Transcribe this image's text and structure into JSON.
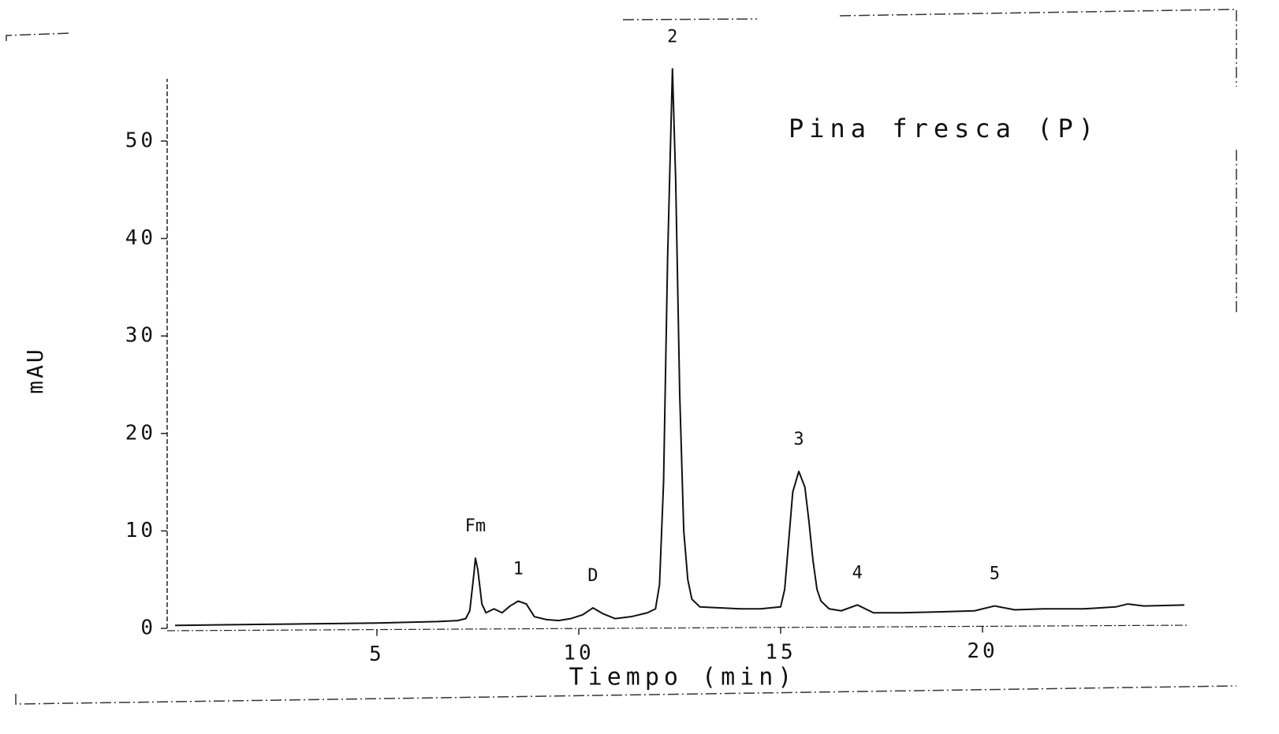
{
  "chart_data": {
    "type": "line",
    "title": "Pina fresca (P)",
    "x_label": "Tiempo (min)",
    "y_label": "mAU",
    "xlim": [
      0,
      25
    ],
    "ylim": [
      0,
      58
    ],
    "xticks": [
      5,
      10,
      15,
      20
    ],
    "yticks": [
      0,
      10,
      20,
      30,
      40,
      50
    ],
    "grid": false,
    "series": [
      {
        "color": "#111111",
        "x": [
          0,
          1,
          2,
          3,
          4,
          5,
          6,
          6.5,
          7,
          7.2,
          7.3,
          7.4,
          7.44,
          7.5,
          7.6,
          7.7,
          7.9,
          8.1,
          8.3,
          8.5,
          8.7,
          8.9,
          9.2,
          9.5,
          9.8,
          10.1,
          10.35,
          10.6,
          10.9,
          11.3,
          11.7,
          11.9,
          12.0,
          12.1,
          12.2,
          12.32,
          12.4,
          12.5,
          12.6,
          12.7,
          12.8,
          13.0,
          13.5,
          14.0,
          14.5,
          15.0,
          15.1,
          15.2,
          15.3,
          15.45,
          15.6,
          15.7,
          15.8,
          15.9,
          16.0,
          16.2,
          16.5,
          16.9,
          17.3,
          18,
          19,
          19.8,
          20.3,
          20.8,
          21.5,
          22.5,
          23.3,
          23.6,
          24,
          25
        ],
        "values": [
          0.3,
          0.35,
          0.4,
          0.45,
          0.5,
          0.55,
          0.65,
          0.7,
          0.8,
          1.0,
          1.8,
          5.5,
          7.2,
          6.0,
          2.5,
          1.6,
          2.0,
          1.6,
          2.3,
          2.8,
          2.5,
          1.2,
          0.9,
          0.8,
          1.0,
          1.4,
          2.1,
          1.5,
          1.0,
          1.2,
          1.6,
          2.0,
          4.5,
          15,
          38,
          57.4,
          46,
          24,
          10,
          5,
          3,
          2.2,
          2.1,
          2.0,
          2.0,
          2.2,
          4,
          9,
          14,
          16.1,
          14.5,
          11,
          7,
          4,
          2.8,
          2.0,
          1.8,
          2.4,
          1.6,
          1.6,
          1.7,
          1.8,
          2.3,
          1.9,
          2.0,
          2.0,
          2.2,
          2.5,
          2.3,
          2.4
        ]
      }
    ],
    "peaks": {
      "labels": [
        "Fm",
        "1",
        "D",
        "2",
        "3",
        "4",
        "5"
      ],
      "x": [
        7.44,
        8.5,
        10.35,
        12.32,
        15.45,
        16.9,
        20.3
      ],
      "values": [
        7.2,
        2.8,
        2.1,
        57.4,
        16.1,
        2.4,
        2.3
      ]
    }
  }
}
